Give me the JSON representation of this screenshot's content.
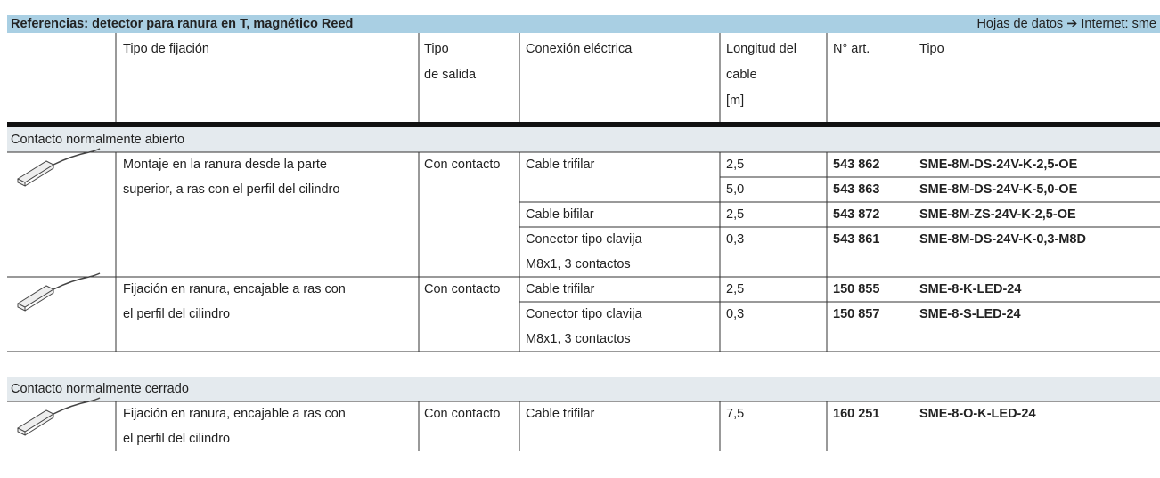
{
  "header": {
    "title": "Referencias: detector para ranura en T, magnético Reed",
    "link": "Hojas de datos ➔ Internet: sme"
  },
  "columns": [
    [
      "Tipo de fijación"
    ],
    [
      "Tipo",
      "de salida"
    ],
    [
      "Conexión eléctrica"
    ],
    [
      "Longitud del",
      "cable",
      "[m]"
    ],
    [
      "N° art."
    ],
    [
      "Tipo"
    ]
  ],
  "sections": [
    {
      "title": "Contacto normalmente abierto",
      "groups": [
        {
          "mounting": [
            "Montaje en la ranura desde la parte",
            "superior, a ras con el perfil del cilindro"
          ],
          "output": "Con contacto",
          "connections": [
            {
              "name": [
                "Cable trifilar"
              ],
              "lengths": [
                {
                  "length": "2,5",
                  "article": "543 862",
                  "type": "SME-8M-DS-24V-K-2,5-OE"
                },
                {
                  "length": "5,0",
                  "article": "543 863",
                  "type": "SME-8M-DS-24V-K-5,0-OE"
                }
              ]
            },
            {
              "name": [
                "Cable bifilar"
              ],
              "lengths": [
                {
                  "length": "2,5",
                  "article": "543 872",
                  "type": "SME-8M-ZS-24V-K-2,5-OE"
                }
              ]
            },
            {
              "name": [
                "Conector tipo clavija",
                "M8x1, 3 contactos"
              ],
              "lengths": [
                {
                  "length": "0,3",
                  "article": "543 861",
                  "type": "SME-8M-DS-24V-K-0,3-M8D"
                }
              ]
            }
          ]
        },
        {
          "mounting": [
            "Fijación en ranura, encajable a ras con",
            "el perfil del cilindro"
          ],
          "output": "Con contacto",
          "connections": [
            {
              "name": [
                "Cable trifilar"
              ],
              "lengths": [
                {
                  "length": "2,5",
                  "article": "150 855",
                  "type": "SME-8-K-LED-24"
                }
              ]
            },
            {
              "name": [
                "Conector tipo clavija",
                "M8x1, 3 contactos"
              ],
              "lengths": [
                {
                  "length": "0,3",
                  "article": "150 857",
                  "type": "SME-8-S-LED-24"
                }
              ]
            }
          ]
        }
      ]
    },
    {
      "title": "Contacto normalmente cerrado",
      "groups": [
        {
          "mounting": [
            "Fijación en ranura, encajable a ras con",
            "el perfil del cilindro"
          ],
          "output": "Con contacto",
          "connections": [
            {
              "name": [
                "Cable trifilar"
              ],
              "lengths": [
                {
                  "length": "7,5",
                  "article": "160 251",
                  "type": "SME-8-O-K-LED-24"
                }
              ]
            }
          ]
        }
      ]
    }
  ]
}
